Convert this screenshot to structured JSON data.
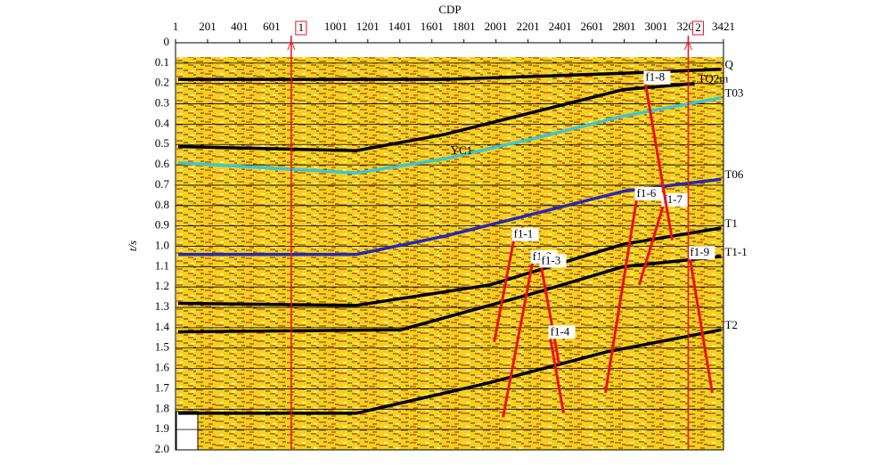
{
  "chart_data": {
    "type": "line",
    "x_axis_label": "CDP",
    "y_axis_label": "t/s",
    "xlim": [
      1,
      3421
    ],
    "ylim": [
      2,
      0
    ],
    "xticks": [
      1,
      201,
      401,
      601,
      1001,
      1201,
      1401,
      1601,
      1801,
      2001,
      2201,
      2401,
      2601,
      2801,
      3001,
      3201,
      3421
    ],
    "yticks": [
      0,
      0.1,
      0.2,
      0.3,
      0.4,
      0.5,
      0.6,
      0.7,
      0.8,
      0.9,
      {
        "value": 1,
        "label": "1.0"
      },
      1.1,
      1.2,
      1.3,
      1.4,
      1.5,
      1.6,
      1.7,
      1.8,
      1.9,
      {
        "value": 2,
        "label": "2.0"
      }
    ],
    "grid": true,
    "series": [
      {
        "name": "Q",
        "color": "#000000",
        "x": [
          18,
          1684,
          2795,
          3407
        ],
        "values": [
          0.18,
          0.18,
          0.15,
          0.13
        ]
      },
      {
        "name": "TQ2m",
        "color": "#000000",
        "x": [
          18,
          1129,
          1684,
          2240,
          2795,
          3240
        ],
        "values": [
          0.51,
          0.53,
          0.45,
          0.34,
          0.23,
          0.2
        ]
      },
      {
        "name": "T03",
        "color": "#40c4d4",
        "inline_label": "YC1",
        "x": [
          18,
          1129,
          1684,
          2240,
          2795,
          3407
        ],
        "values": [
          0.59,
          0.64,
          0.57,
          0.47,
          0.36,
          0.27
        ]
      },
      {
        "name": "T06",
        "color": "#2828b0",
        "x": [
          18,
          1129,
          1684,
          2240,
          2795,
          3407
        ],
        "values": [
          1.04,
          1.04,
          0.95,
          0.84,
          0.73,
          0.67
        ]
      },
      {
        "name": "T1",
        "color": "#000000",
        "x": [
          18,
          1129,
          1962,
          2795,
          3407
        ],
        "values": [
          1.28,
          1.29,
          1.19,
          0.99,
          0.91
        ]
      },
      {
        "name": "T1-1",
        "color": "#000000",
        "x": [
          18,
          1407,
          2240,
          2795,
          3407
        ],
        "values": [
          1.42,
          1.41,
          1.23,
          1.1,
          1.05
        ]
      },
      {
        "name": "T2",
        "color": "#000000",
        "x": [
          18,
          1129,
          1962,
          2684,
          3407
        ],
        "values": [
          1.82,
          1.82,
          1.67,
          1.52,
          1.41
        ]
      }
    ],
    "faults": [
      {
        "label": "f1-1",
        "color": "#e8141c",
        "x": [
          1990,
          2112
        ],
        "values": [
          1.47,
          0.97
        ]
      },
      {
        "label": "f1-2",
        "color": "#e8141c",
        "x": [
          2045,
          2229
        ],
        "values": [
          1.84,
          1.08
        ]
      },
      {
        "label": "f1-3",
        "color": "#e8141c",
        "x": [
          2395,
          2284
        ],
        "values": [
          1.58,
          1.1
        ]
      },
      {
        "label": "f1-4",
        "color": "#e8141c",
        "x": [
          2423,
          2340
        ],
        "values": [
          1.82,
          1.45
        ]
      },
      {
        "label": "f1-6",
        "color": "#e8141c",
        "x": [
          2684,
          2879
        ],
        "values": [
          1.72,
          0.77
        ]
      },
      {
        "label": "f1-7",
        "color": "#e8141c",
        "x": [
          2895,
          3045
        ],
        "values": [
          1.19,
          0.8
        ]
      },
      {
        "label": "f1-8",
        "color": "#e8141c",
        "x": [
          3101,
          2934
        ],
        "values": [
          0.97,
          0.2
        ]
      },
      {
        "label": "f1-9",
        "color": "#e8141c",
        "x": [
          3351,
          3212
        ],
        "values": [
          1.72,
          1.06
        ]
      }
    ],
    "wells": [
      {
        "label": "1",
        "x": 723
      },
      {
        "label": "2",
        "x": 3201
      }
    ]
  }
}
